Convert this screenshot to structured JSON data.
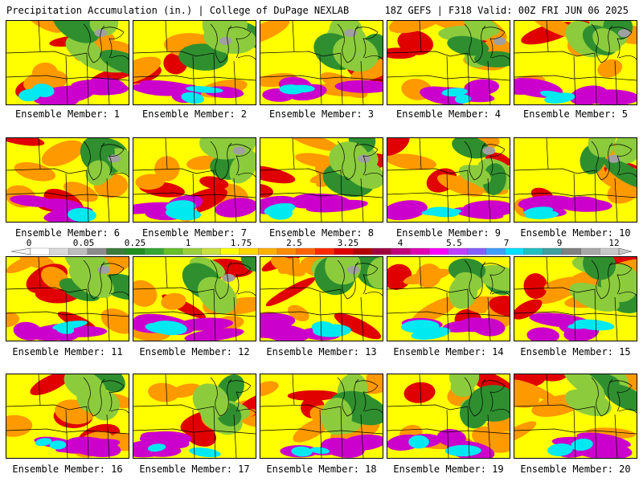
{
  "header": {
    "title": "Precipitation Accumulation (in.) | College of DuPage NEXLAB",
    "run_info": "18Z GEFS | F318 Valid: 00Z FRI JUN 06 2025"
  },
  "members": [
    "Ensemble Member: 1",
    "Ensemble Member: 2",
    "Ensemble Member: 3",
    "Ensemble Member: 4",
    "Ensemble Member: 5",
    "Ensemble Member: 6",
    "Ensemble Member: 7",
    "Ensemble Member: 8",
    "Ensemble Member: 9",
    "Ensemble Member: 10",
    "Ensemble Member: 11",
    "Ensemble Member: 12",
    "Ensemble Member: 13",
    "Ensemble Member: 14",
    "Ensemble Member: 15",
    "Ensemble Member: 16",
    "Ensemble Member: 17",
    "Ensemble Member: 18",
    "Ensemble Member: 19",
    "Ensemble Member: 20"
  ],
  "legend": {
    "tick_labels": [
      "0",
      "0.05",
      "0.25",
      "1",
      "1.75",
      "2.5",
      "3.25",
      "4",
      "5.5",
      "7",
      "9",
      "12"
    ],
    "colors": [
      "#ffffff",
      "#d9d9d9",
      "#bdbdbd",
      "#8c8c8c",
      "#3c7d3c",
      "#1f8f1f",
      "#33a833",
      "#66c02a",
      "#9ad13a",
      "#c8e03c",
      "#ffff00",
      "#ffd700",
      "#ffb000",
      "#ff8c00",
      "#ff6400",
      "#ff2800",
      "#e00000",
      "#b40000",
      "#a00040",
      "#c0007a",
      "#e000b0",
      "#ff00ff",
      "#c040ff",
      "#8060ff",
      "#40a0ff",
      "#00e0ff",
      "#20c0c0",
      "#40a0a0",
      "#808080",
      "#a8a8a8",
      "#c8c8c8"
    ]
  },
  "palette": {
    "dry": "#2f8f2f",
    "light": "#8ccc3c",
    "moderate": "#ffff00",
    "orange": "#ff9900",
    "heavy": "#e00000",
    "very_heavy": "#cc00cc",
    "extreme": "#00e8f0",
    "max": "#a0a0a0"
  }
}
